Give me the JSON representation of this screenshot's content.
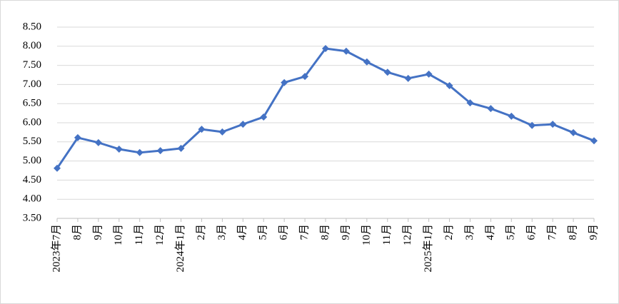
{
  "chart_data": {
    "type": "line",
    "categories": [
      "2023年7月",
      "8月",
      "9月",
      "10月",
      "11月",
      "12月",
      "2024年1月",
      "2月",
      "3月",
      "4月",
      "5月",
      "6月",
      "7月",
      "8月",
      "9月",
      "10月",
      "11月",
      "12月",
      "2025年1月",
      "2月",
      "3月",
      "4月",
      "5月",
      "6月",
      "7月",
      "8月",
      "9月"
    ],
    "values": [
      4.81,
      5.61,
      5.48,
      5.31,
      5.22,
      5.27,
      5.33,
      5.83,
      5.76,
      5.96,
      6.15,
      7.05,
      7.21,
      7.94,
      7.87,
      7.59,
      7.32,
      7.16,
      7.27,
      6.97,
      6.52,
      6.37,
      6.17,
      5.93,
      5.96,
      5.74,
      5.53
    ],
    "color": "#4472c4",
    "ylim": [
      3.5,
      8.5
    ],
    "yticks": [
      {
        "value": 3.5,
        "label": "3.50"
      },
      {
        "value": 4,
        "label": "4.00"
      },
      {
        "value": 4.5,
        "label": "4.50"
      },
      {
        "value": 5,
        "label": "5.00"
      },
      {
        "value": 5.5,
        "label": "5.50"
      },
      {
        "value": 6,
        "label": "6.00"
      },
      {
        "value": 6.5,
        "label": "6.50"
      },
      {
        "value": 7,
        "label": "7.00"
      },
      {
        "value": 7.5,
        "label": "7.50"
      },
      {
        "value": 8,
        "label": "8.00"
      },
      {
        "value": 8.5,
        "label": "8.50"
      }
    ],
    "grid": true
  }
}
